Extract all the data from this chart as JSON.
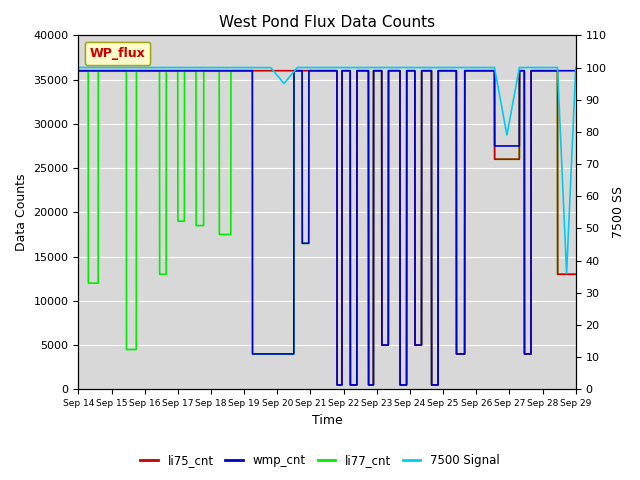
{
  "title": "West Pond Flux Data Counts",
  "xlabel": "Time",
  "ylabel_left": "Data Counts",
  "ylabel_right": "7500 SS",
  "legend_label": "WP_flux",
  "ylim_left": [
    0,
    40000
  ],
  "ylim_right": [
    0,
    110
  ],
  "plot_bg": "#d8d8d8",
  "fig_bg": "#ffffff",
  "series_colors": {
    "li77": "#00ee00",
    "li75": "#cc0000",
    "wmp": "#0000cc",
    "sig": "#00ccee"
  },
  "x_tick_labels": [
    "Sep 14",
    "Sep 15",
    "Sep 16",
    "Sep 17",
    "Sep 18",
    "Sep 19",
    "Sep 20",
    "Sep 21",
    "Sep 22",
    "Sep 23",
    "Sep 24",
    "Sep 25",
    "Sep 26",
    "Sep 27",
    "Sep 28",
    "Sep 29"
  ],
  "x_tick_positions": [
    0,
    1,
    2,
    3,
    4,
    5,
    6,
    7,
    8,
    9,
    10,
    11,
    12,
    13,
    14,
    15
  ],
  "yticks_left": [
    0,
    5000,
    10000,
    15000,
    20000,
    25000,
    30000,
    35000,
    40000
  ],
  "yticks_right": [
    0,
    10,
    20,
    30,
    40,
    50,
    60,
    70,
    80,
    90,
    100,
    110
  ],
  "linewidth": 1.2,
  "wp_flux_box": {
    "facecolor": "#ffffcc",
    "edgecolor": "#999900",
    "text_color": "#cc0000",
    "fontsize": 9
  }
}
